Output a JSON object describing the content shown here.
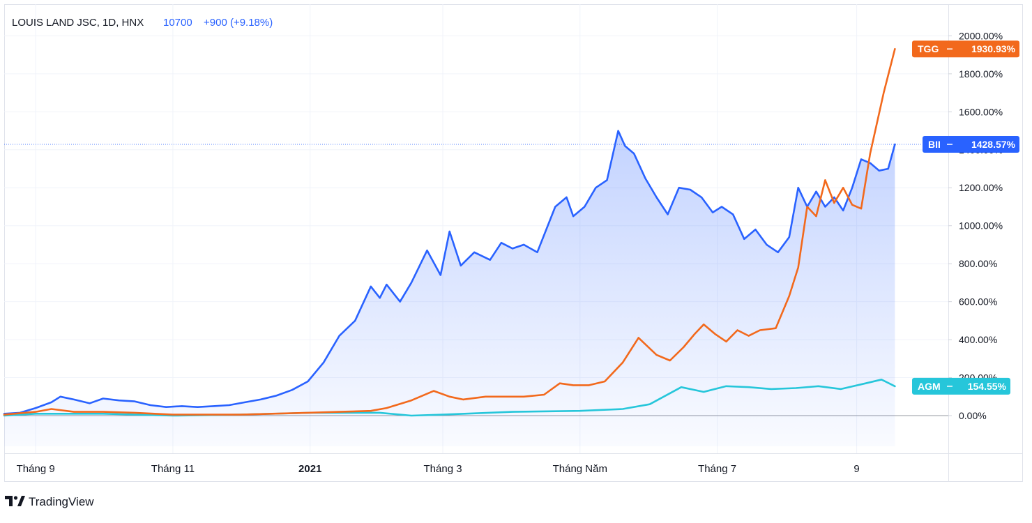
{
  "header": {
    "symbol_text": "LOUIS LAND JSC, 1D, HNX",
    "price": "10700",
    "change": "+900 (+9.18%)"
  },
  "branding": {
    "logo_text": "TradingView"
  },
  "colors": {
    "BII": "#2962ff",
    "TGG": "#f2691c",
    "AGM": "#26c6da",
    "grid": "#f0f3fa",
    "axis": "#d1d4dc",
    "text": "#131722",
    "header_blue": "#2962ff"
  },
  "chart_data": {
    "type": "line",
    "title": "LOUIS LAND JSC, 1D, HNX",
    "xlabel": "",
    "ylabel": "",
    "y_unit": "%",
    "ylim": [
      -200,
      2050
    ],
    "y_ticks": [
      0,
      200,
      400,
      600,
      800,
      1000,
      1200,
      1400,
      1600,
      1800,
      2000
    ],
    "y_tick_labels": [
      "0.00%",
      "200.00%",
      "400.00%",
      "600.00%",
      "800.00%",
      "1000.00%",
      "1200.00%",
      "1400.00%",
      "1600.00%",
      "1800.00%",
      "2000.00%"
    ],
    "x_tick_labels": [
      {
        "label": "Tháng 9",
        "bold": false
      },
      {
        "label": "Tháng 11",
        "bold": false
      },
      {
        "label": "2021",
        "bold": true
      },
      {
        "label": "Tháng 3",
        "bold": false
      },
      {
        "label": "Tháng Năm",
        "bold": false
      },
      {
        "label": "Tháng 7",
        "bold": false
      },
      {
        "label": "9",
        "bold": false
      }
    ],
    "x_tick_dates": [
      "2020-09-01",
      "2020-11-01",
      "2021-01-01",
      "2021-03-01",
      "2021-05-01",
      "2021-07-01",
      "2021-09-01"
    ],
    "x_range": [
      "2020-08-18",
      "2021-09-25"
    ],
    "grid": true,
    "crosshair_value": 1428.57,
    "series": [
      {
        "name": "BII",
        "color": "#2962ff",
        "fill": true,
        "last_label": "1428.57%",
        "points": [
          [
            "2020-08-18",
            10
          ],
          [
            "2020-08-25",
            15
          ],
          [
            "2020-09-01",
            40
          ],
          [
            "2020-09-08",
            70
          ],
          [
            "2020-09-12",
            100
          ],
          [
            "2020-09-18",
            85
          ],
          [
            "2020-09-25",
            65
          ],
          [
            "2020-10-01",
            90
          ],
          [
            "2020-10-08",
            80
          ],
          [
            "2020-10-15",
            75
          ],
          [
            "2020-10-22",
            55
          ],
          [
            "2020-10-29",
            45
          ],
          [
            "2020-11-05",
            50
          ],
          [
            "2020-11-12",
            45
          ],
          [
            "2020-11-19",
            50
          ],
          [
            "2020-11-26",
            55
          ],
          [
            "2020-12-03",
            70
          ],
          [
            "2020-12-10",
            85
          ],
          [
            "2020-12-17",
            105
          ],
          [
            "2020-12-24",
            135
          ],
          [
            "2020-12-31",
            180
          ],
          [
            "2021-01-07",
            280
          ],
          [
            "2021-01-14",
            420
          ],
          [
            "2021-01-21",
            500
          ],
          [
            "2021-01-28",
            680
          ],
          [
            "2021-02-01",
            620
          ],
          [
            "2021-02-04",
            690
          ],
          [
            "2021-02-10",
            600
          ],
          [
            "2021-02-15",
            700
          ],
          [
            "2021-02-22",
            870
          ],
          [
            "2021-02-28",
            740
          ],
          [
            "2021-03-04",
            970
          ],
          [
            "2021-03-09",
            790
          ],
          [
            "2021-03-15",
            860
          ],
          [
            "2021-03-22",
            820
          ],
          [
            "2021-03-27",
            910
          ],
          [
            "2021-04-01",
            880
          ],
          [
            "2021-04-06",
            900
          ],
          [
            "2021-04-12",
            860
          ],
          [
            "2021-04-20",
            1100
          ],
          [
            "2021-04-25",
            1150
          ],
          [
            "2021-04-28",
            1050
          ],
          [
            "2021-05-03",
            1100
          ],
          [
            "2021-05-08",
            1200
          ],
          [
            "2021-05-13",
            1240
          ],
          [
            "2021-05-18",
            1500
          ],
          [
            "2021-05-21",
            1420
          ],
          [
            "2021-05-25",
            1380
          ],
          [
            "2021-05-30",
            1250
          ],
          [
            "2021-06-04",
            1150
          ],
          [
            "2021-06-09",
            1060
          ],
          [
            "2021-06-14",
            1200
          ],
          [
            "2021-06-19",
            1190
          ],
          [
            "2021-06-24",
            1150
          ],
          [
            "2021-06-29",
            1070
          ],
          [
            "2021-07-03",
            1100
          ],
          [
            "2021-07-08",
            1060
          ],
          [
            "2021-07-13",
            930
          ],
          [
            "2021-07-18",
            980
          ],
          [
            "2021-07-23",
            900
          ],
          [
            "2021-07-28",
            860
          ],
          [
            "2021-08-02",
            940
          ],
          [
            "2021-08-06",
            1200
          ],
          [
            "2021-08-10",
            1100
          ],
          [
            "2021-08-14",
            1180
          ],
          [
            "2021-08-18",
            1100
          ],
          [
            "2021-08-22",
            1150
          ],
          [
            "2021-08-26",
            1080
          ],
          [
            "2021-08-30",
            1200
          ],
          [
            "2021-09-03",
            1350
          ],
          [
            "2021-09-07",
            1330
          ],
          [
            "2021-09-11",
            1290
          ],
          [
            "2021-09-15",
            1300
          ],
          [
            "2021-09-18",
            1428.57
          ]
        ]
      },
      {
        "name": "TGG",
        "color": "#f2691c",
        "fill": false,
        "last_label": "1930.93%",
        "points": [
          [
            "2020-08-18",
            5
          ],
          [
            "2020-09-01",
            20
          ],
          [
            "2020-09-08",
            35
          ],
          [
            "2020-09-18",
            20
          ],
          [
            "2020-10-01",
            20
          ],
          [
            "2020-10-15",
            15
          ],
          [
            "2020-11-01",
            5
          ],
          [
            "2020-11-15",
            5
          ],
          [
            "2020-12-01",
            5
          ],
          [
            "2020-12-15",
            10
          ],
          [
            "2020-12-31",
            15
          ],
          [
            "2021-01-14",
            20
          ],
          [
            "2021-01-28",
            25
          ],
          [
            "2021-02-04",
            40
          ],
          [
            "2021-02-15",
            80
          ],
          [
            "2021-02-25",
            130
          ],
          [
            "2021-03-04",
            100
          ],
          [
            "2021-03-10",
            85
          ],
          [
            "2021-03-20",
            100
          ],
          [
            "2021-04-06",
            100
          ],
          [
            "2021-04-15",
            110
          ],
          [
            "2021-04-22",
            170
          ],
          [
            "2021-04-28",
            160
          ],
          [
            "2021-05-05",
            160
          ],
          [
            "2021-05-12",
            180
          ],
          [
            "2021-05-20",
            280
          ],
          [
            "2021-05-27",
            410
          ],
          [
            "2021-06-04",
            320
          ],
          [
            "2021-06-10",
            290
          ],
          [
            "2021-06-16",
            360
          ],
          [
            "2021-06-21",
            430
          ],
          [
            "2021-06-25",
            480
          ],
          [
            "2021-06-30",
            430
          ],
          [
            "2021-07-05",
            390
          ],
          [
            "2021-07-10",
            450
          ],
          [
            "2021-07-15",
            420
          ],
          [
            "2021-07-20",
            450
          ],
          [
            "2021-07-27",
            460
          ],
          [
            "2021-08-02",
            630
          ],
          [
            "2021-08-06",
            780
          ],
          [
            "2021-08-10",
            1100
          ],
          [
            "2021-08-14",
            1050
          ],
          [
            "2021-08-18",
            1240
          ],
          [
            "2021-08-22",
            1120
          ],
          [
            "2021-08-26",
            1200
          ],
          [
            "2021-08-30",
            1110
          ],
          [
            "2021-09-03",
            1090
          ],
          [
            "2021-09-07",
            1380
          ],
          [
            "2021-09-13",
            1700
          ],
          [
            "2021-09-18",
            1930.93
          ]
        ]
      },
      {
        "name": "AGM",
        "color": "#26c6da",
        "fill": false,
        "last_label": "154.55%",
        "points": [
          [
            "2020-08-18",
            0
          ],
          [
            "2020-09-01",
            10
          ],
          [
            "2020-10-01",
            10
          ],
          [
            "2020-11-01",
            0
          ],
          [
            "2020-12-01",
            5
          ],
          [
            "2021-01-01",
            15
          ],
          [
            "2021-02-01",
            15
          ],
          [
            "2021-02-15",
            0
          ],
          [
            "2021-03-01",
            5
          ],
          [
            "2021-04-01",
            20
          ],
          [
            "2021-05-01",
            25
          ],
          [
            "2021-05-20",
            35
          ],
          [
            "2021-06-01",
            60
          ],
          [
            "2021-06-15",
            150
          ],
          [
            "2021-06-25",
            125
          ],
          [
            "2021-07-05",
            155
          ],
          [
            "2021-07-15",
            150
          ],
          [
            "2021-07-25",
            140
          ],
          [
            "2021-08-05",
            145
          ],
          [
            "2021-08-15",
            155
          ],
          [
            "2021-08-25",
            140
          ],
          [
            "2021-09-05",
            170
          ],
          [
            "2021-09-12",
            190
          ],
          [
            "2021-09-18",
            154.55
          ]
        ]
      }
    ]
  }
}
